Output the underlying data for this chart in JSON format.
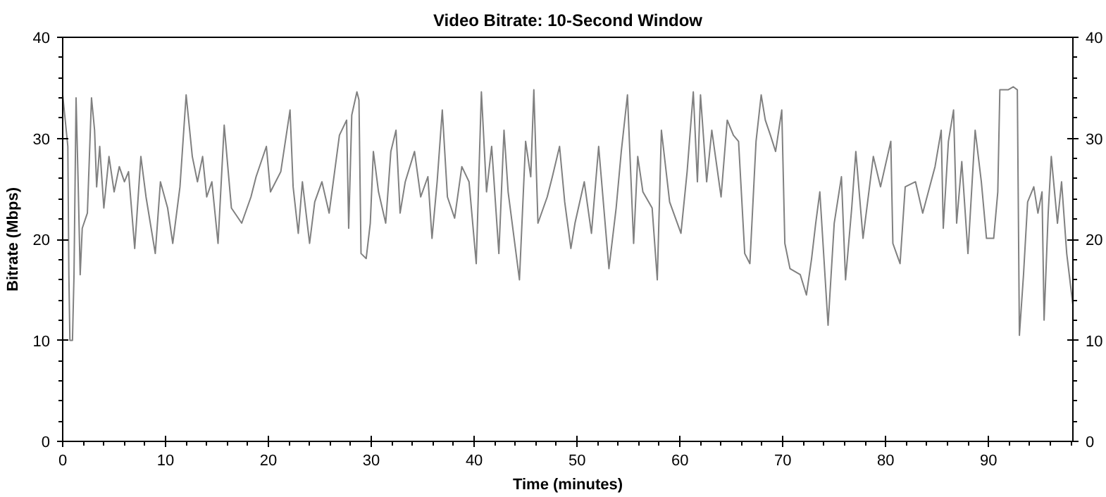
{
  "chart_data": {
    "type": "line",
    "title": "Video Bitrate: 10-Second Window",
    "xlabel": "Time (minutes)",
    "ylabel": "Bitrate (Mbps)",
    "xlim": [
      0,
      98.2
    ],
    "xticks": [
      0,
      10,
      20,
      30,
      40,
      50,
      60,
      70,
      80,
      90
    ],
    "ylim": [
      0,
      40
    ],
    "yticks": [
      0,
      10,
      20,
      30,
      40
    ],
    "y2lim": [
      0,
      40
    ],
    "y2ticks": [
      0,
      10,
      20,
      30,
      40
    ],
    "grid": false,
    "marker": "none",
    "line_style": "solid",
    "series": [
      {
        "color": "#808080",
        "x": [
          0,
          0.5,
          0.6,
          0.7,
          0.95,
          1.1,
          1.3,
          1.5,
          1.7,
          1.9,
          2.4,
          2.8,
          3.1,
          3.3,
          3.6,
          4.0,
          4.5,
          5.0,
          5.5,
          6.0,
          6.4,
          7.0,
          7.6,
          8.1,
          9.0,
          9.5,
          10.2,
          10.7,
          11.4,
          12.0,
          12.6,
          13.1,
          13.6,
          14.0,
          14.5,
          15.1,
          15.7,
          16.4,
          17.4,
          18.3,
          18.8,
          19.8,
          20.2,
          21.2,
          22.1,
          22.4,
          22.9,
          23.3,
          24.0,
          24.5,
          25.2,
          25.9,
          26.9,
          27.6,
          27.8,
          28.1,
          28.6,
          28.8,
          29.0,
          29.5,
          29.9,
          30.2,
          30.7,
          31.4,
          31.9,
          32.4,
          32.8,
          33.3,
          34.2,
          34.8,
          35.5,
          35.9,
          36.4,
          36.9,
          37.4,
          38.1,
          38.8,
          39.5,
          40.2,
          40.7,
          41.2,
          41.7,
          42.4,
          42.9,
          43.3,
          44.4,
          45.0,
          45.5,
          45.8,
          46.2,
          47.1,
          47.6,
          48.3,
          48.8,
          49.4,
          49.8,
          50.7,
          51.4,
          52.1,
          53.1,
          53.8,
          54.3,
          54.9,
          55.5,
          55.9,
          56.4,
          57.3,
          57.8,
          58.2,
          59.0,
          60.1,
          60.7,
          61.3,
          61.7,
          62.0,
          62.6,
          63.1,
          64.0,
          64.6,
          65.2,
          65.7,
          66.3,
          66.8,
          67.4,
          67.9,
          68.3,
          68.8,
          69.3,
          69.9,
          70.2,
          70.7,
          71.7,
          72.3,
          72.8,
          73.2,
          73.6,
          74.4,
          75.0,
          75.7,
          76.1,
          76.7,
          77.1,
          77.8,
          78.8,
          79.5,
          80.5,
          80.7,
          81.4,
          81.9,
          82.9,
          83.6,
          84.8,
          85.4,
          85.6,
          86.1,
          86.6,
          86.9,
          87.4,
          88.0,
          88.7,
          89.3,
          89.8,
          90.5,
          90.9,
          91.1,
          91.9,
          92.4,
          92.8,
          93.0,
          93.4,
          93.8,
          94.4,
          94.8,
          95.2,
          95.4,
          95.8,
          96.1,
          96.7,
          97.1,
          97.6,
          98.2
        ],
        "values": [
          34.3,
          29.2,
          16.5,
          10,
          10,
          16.5,
          34,
          25.7,
          16.5,
          21.1,
          22.6,
          34,
          30.8,
          25.2,
          29.2,
          23.1,
          28.2,
          24.7,
          27.2,
          25.7,
          26.7,
          19.1,
          28.2,
          24.2,
          18.6,
          25.7,
          23.1,
          19.6,
          25.2,
          34.3,
          28.2,
          25.7,
          28.2,
          24.2,
          25.7,
          19.6,
          31.3,
          23.1,
          21.6,
          24.2,
          26.2,
          29.2,
          24.7,
          26.7,
          32.8,
          25.2,
          20.6,
          25.7,
          19.6,
          23.7,
          25.7,
          22.6,
          30.3,
          31.8,
          21.1,
          32.3,
          34.6,
          33.8,
          18.6,
          18.1,
          21.6,
          28.7,
          24.7,
          21.6,
          28.7,
          30.8,
          22.6,
          25.7,
          28.7,
          24.2,
          26.2,
          20.1,
          25.7,
          32.8,
          24.2,
          22.1,
          27.2,
          25.7,
          17.6,
          34.6,
          24.7,
          29.2,
          18.6,
          30.8,
          24.7,
          16,
          29.7,
          26.2,
          34.8,
          21.6,
          24.2,
          26.2,
          29.2,
          23.7,
          19.1,
          21.6,
          25.7,
          20.6,
          29.2,
          17.1,
          23.1,
          28.7,
          34.3,
          19.6,
          28.2,
          24.7,
          23.1,
          16,
          30.8,
          23.7,
          20.6,
          26.7,
          34.6,
          25.7,
          34.3,
          25.7,
          30.8,
          24.2,
          31.8,
          30.3,
          29.7,
          18.6,
          17.6,
          29.7,
          34.3,
          31.8,
          30.3,
          28.7,
          32.8,
          19.6,
          17.1,
          16.5,
          14.5,
          18.1,
          21.6,
          24.7,
          11.5,
          21.6,
          26.2,
          16,
          23.1,
          28.7,
          20.1,
          28.2,
          25.2,
          29.7,
          19.6,
          17.6,
          25.2,
          25.7,
          22.6,
          27.2,
          30.8,
          21.1,
          29.7,
          32.8,
          21.6,
          27.7,
          18.6,
          30.8,
          25.7,
          20.1,
          20.1,
          24.7,
          34.8,
          34.8,
          35.1,
          34.8,
          10.5,
          16.5,
          23.7,
          25.2,
          22.6,
          24.7,
          12,
          22.6,
          28.2,
          21.6,
          25.7,
          18.6,
          13.5
        ]
      }
    ]
  }
}
